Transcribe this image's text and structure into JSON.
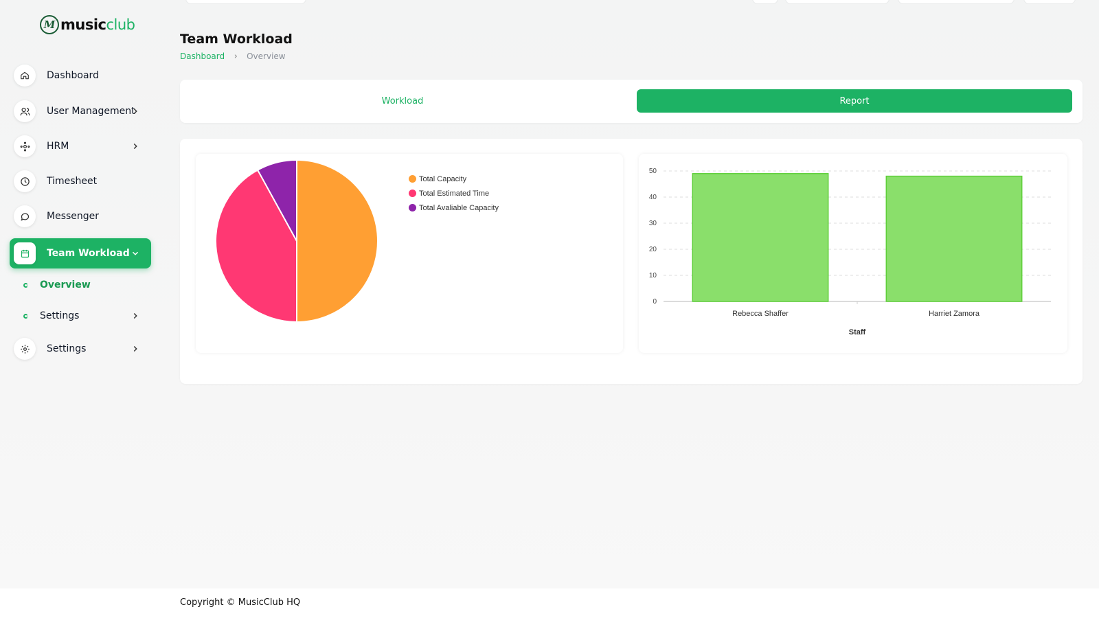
{
  "brand": {
    "name_a": "music",
    "name_b": "club",
    "mark": "M"
  },
  "sidebar": {
    "items": [
      {
        "label": "Dashboard",
        "icon": "home-icon"
      },
      {
        "label": "User Management",
        "icon": "users-icon"
      },
      {
        "label": "HRM",
        "icon": "hrm-icon"
      },
      {
        "label": "Timesheet",
        "icon": "clock-icon"
      },
      {
        "label": "Messenger",
        "icon": "message-icon"
      },
      {
        "label": "Team Workload",
        "icon": "calendar-icon"
      },
      {
        "label": "Settings",
        "icon": "gear-icon"
      }
    ],
    "subitems": [
      {
        "label": "Overview"
      },
      {
        "label": "Settings"
      }
    ]
  },
  "header": {
    "title": "Team Workload",
    "breadcrumb": {
      "link": "Dashboard",
      "current": "Overview"
    }
  },
  "tabs": [
    {
      "label": "Workload"
    },
    {
      "label": "Report"
    }
  ],
  "colors": {
    "accent": "#1db264",
    "capacity": "#ff9f33",
    "estimated": "#ff3873",
    "available": "#8e24aa",
    "bar_fill": "#8adf6b",
    "bar_stroke": "#5fcf3a"
  },
  "chart_data": [
    {
      "type": "pie",
      "legend": [
        "Total Capacity",
        "Total Estimated Time",
        "Total Avaliable Capacity"
      ],
      "values": [
        50,
        42,
        8
      ],
      "legend_position": "right"
    },
    {
      "type": "bar",
      "categories": [
        "Rebecca Shaffer",
        "Harriet Zamora"
      ],
      "values": [
        49,
        48
      ],
      "xlabel": "Staff",
      "ylabel": "",
      "ylim": [
        0,
        50
      ],
      "yticks": [
        "0",
        "10",
        "20",
        "30",
        "40",
        "50"
      ],
      "grid": true
    }
  ],
  "footer": {
    "text": "Copyright © MusicClub HQ"
  }
}
